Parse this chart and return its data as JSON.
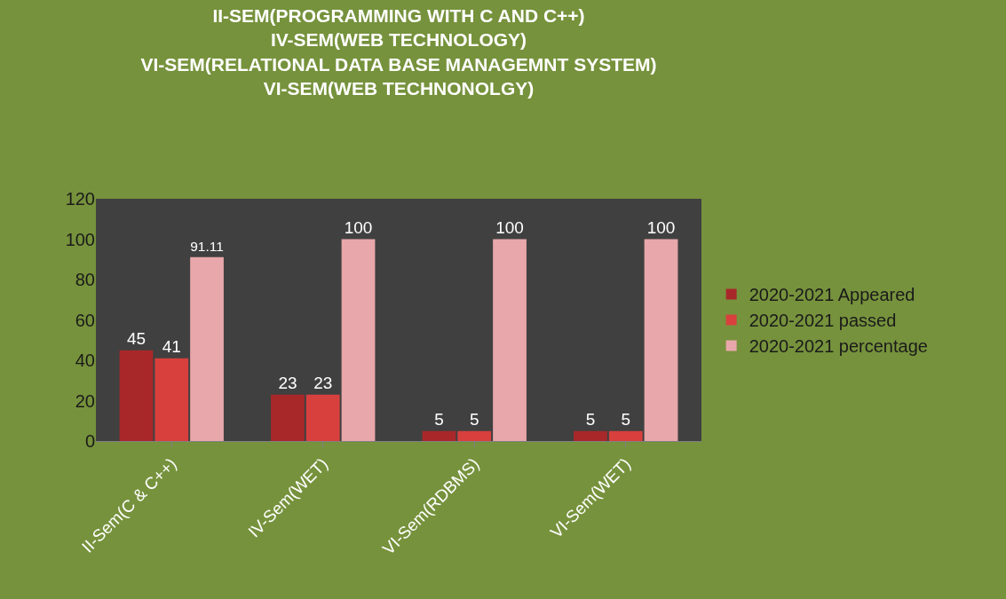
{
  "chart_data": {
    "type": "bar",
    "title": "II-SEM(PROGRAMMING WITH C AND C++)\nIV-SEM(WEB TECHNOLOGY)\nVI-SEM(RELATIONAL DATA BASE MANAGEMNT SYSTEM)\nVI-SEM(WEB TECHNONOLGY)",
    "categories": [
      "II-Sem(C & C++)",
      "IV-Sem(WET)",
      "VI-Sem(RDBMS)",
      "VI-Sem(WET)"
    ],
    "series": [
      {
        "name": "2020-2021 Appeared",
        "color": "#a8282a",
        "values": [
          45,
          23,
          5,
          5
        ]
      },
      {
        "name": "2020-2021 passed",
        "color": "#d8403e",
        "values": [
          41,
          23,
          5,
          5
        ]
      },
      {
        "name": "2020-2021 percentage",
        "color": "#e8a7aa",
        "values": [
          91.11,
          100,
          100,
          100
        ]
      }
    ],
    "ylim": [
      0,
      120
    ],
    "yticks": [
      0,
      20,
      40,
      60,
      80,
      100,
      120
    ],
    "grid": false,
    "legend": "right",
    "data_labels": true
  }
}
